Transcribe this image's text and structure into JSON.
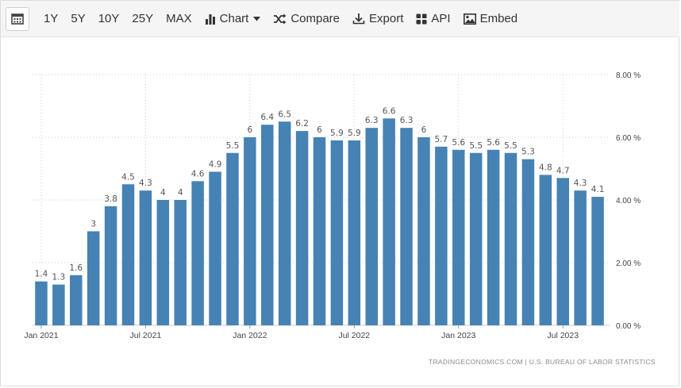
{
  "toolbar": {
    "calendar_icon": "calendar-icon",
    "ranges": [
      "1Y",
      "5Y",
      "10Y",
      "25Y",
      "MAX"
    ],
    "chart_label": "Chart",
    "compare_label": "Compare",
    "export_label": "Export",
    "api_label": "API",
    "embed_label": "Embed"
  },
  "attribution": "TRADINGECONOMICS.COM  |  U.S. BUREAU OF LABOR STATISTICS",
  "colors": {
    "bar": "#4682b4",
    "axis_text": "#444444",
    "grid": "#cccccc"
  },
  "chart_data": {
    "type": "bar",
    "title": "",
    "xlabel": "",
    "ylabel": "",
    "ylim": [
      0,
      8
    ],
    "y_ticks": [
      0,
      2,
      4,
      6,
      8
    ],
    "y_tick_labels": [
      "0.00 %",
      "2.00 %",
      "4.00 %",
      "6.00 %",
      "8.00 %"
    ],
    "x_ticks": [
      {
        "index": 0,
        "label": "Jan 2021"
      },
      {
        "index": 6,
        "label": "Jul 2021"
      },
      {
        "index": 12,
        "label": "Jan 2022"
      },
      {
        "index": 18,
        "label": "Jul 2022"
      },
      {
        "index": 24,
        "label": "Jan 2023"
      },
      {
        "index": 30,
        "label": "Jul 2023"
      }
    ],
    "categories": [
      "Jan 2021",
      "Feb 2021",
      "Mar 2021",
      "Apr 2021",
      "May 2021",
      "Jun 2021",
      "Jul 2021",
      "Aug 2021",
      "Sep 2021",
      "Oct 2021",
      "Nov 2021",
      "Dec 2021",
      "Jan 2022",
      "Feb 2022",
      "Mar 2022",
      "Apr 2022",
      "May 2022",
      "Jun 2022",
      "Jul 2022",
      "Aug 2022",
      "Sep 2022",
      "Oct 2022",
      "Nov 2022",
      "Dec 2022",
      "Jan 2023",
      "Feb 2023",
      "Mar 2023",
      "Apr 2023",
      "May 2023",
      "Jun 2023",
      "Jul 2023",
      "Aug 2023",
      "Sep 2023"
    ],
    "values": [
      1.4,
      1.3,
      1.6,
      3,
      3.8,
      4.5,
      4.3,
      4,
      4,
      4.6,
      4.9,
      5.5,
      6,
      6.4,
      6.5,
      6.2,
      6,
      5.9,
      5.9,
      6.3,
      6.6,
      6.3,
      6,
      5.7,
      5.6,
      5.5,
      5.6,
      5.5,
      5.3,
      4.8,
      4.7,
      4.3,
      4.1
    ],
    "grid": true,
    "legend": "none"
  }
}
